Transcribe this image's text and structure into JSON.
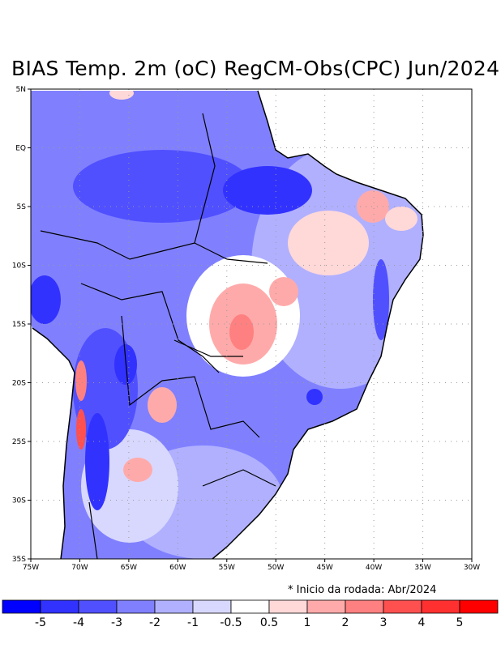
{
  "title": "BIAS Temp. 2m (oC) RegCM-Obs(CPC) Jun/2024",
  "note": "* Inicio da rodada: Abr/2024",
  "axes": {
    "lat_labels": [
      "5N",
      "EQ",
      "5S",
      "10S",
      "15S",
      "20S",
      "25S",
      "30S",
      "35S"
    ],
    "lon_labels": [
      "75W",
      "70W",
      "65W",
      "60W",
      "55W",
      "50W",
      "45W",
      "40W",
      "35W",
      "30W"
    ]
  },
  "colorbar": {
    "colors": [
      "#0000ff",
      "#3232ff",
      "#5050ff",
      "#8080ff",
      "#b0b0ff",
      "#d8d8ff",
      "#ffffff",
      "#ffd8d8",
      "#ffaaaa",
      "#ff8080",
      "#ff5050",
      "#ff3030",
      "#ff0000"
    ],
    "labels": [
      "-5",
      "-4",
      "-3",
      "-2",
      "-1",
      "-0.5",
      "0.5",
      "1",
      "2",
      "3",
      "4",
      "5"
    ]
  }
}
